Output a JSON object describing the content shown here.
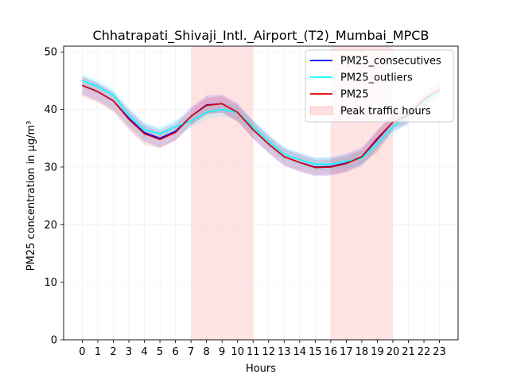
{
  "chart_data": {
    "type": "line",
    "title": "Chhatrapati_Shivaji_Intl._Airport_(T2)_Mumbai_MPCB",
    "xlabel": "Hours",
    "ylabel": "PM25 concentration in µg/m³",
    "x": [
      0,
      1,
      2,
      3,
      4,
      5,
      6,
      7,
      8,
      9,
      10,
      11,
      12,
      13,
      14,
      15,
      16,
      17,
      18,
      19,
      20,
      21,
      22,
      23
    ],
    "xlim": [
      -1.2,
      24.2
    ],
    "ylim": [
      0,
      51
    ],
    "yticks": [
      0,
      10,
      20,
      30,
      40,
      50
    ],
    "grid": true,
    "legend_position": "top-right",
    "series": [
      {
        "name": "PM25_consecutives",
        "color": "#0000ff",
        "values": [
          44.2,
          43.1,
          41.5,
          38.5,
          36.0,
          35.0,
          36.2,
          38.8,
          40.8,
          41.0,
          39.5,
          36.5,
          34.0,
          31.8,
          30.8,
          30.0,
          30.1,
          30.7,
          31.8,
          34.8,
          37.8,
          39.0,
          null,
          null
        ],
        "band_lower": [
          42.6,
          41.5,
          39.9,
          36.9,
          34.4,
          33.4,
          34.6,
          37.2,
          39.2,
          39.4,
          37.9,
          34.9,
          32.4,
          30.2,
          29.2,
          28.4,
          28.5,
          29.1,
          30.2,
          33.2,
          36.2,
          37.4,
          null,
          null
        ],
        "band_upper": [
          45.8,
          44.7,
          43.1,
          40.1,
          37.6,
          36.6,
          37.8,
          40.4,
          42.4,
          42.6,
          41.1,
          38.1,
          35.6,
          33.4,
          32.4,
          31.6,
          31.7,
          32.3,
          33.4,
          36.4,
          39.4,
          40.6,
          null,
          null
        ]
      },
      {
        "name": "PM25_outliers",
        "color": "#00ffff",
        "values": [
          45.0,
          44.0,
          42.5,
          39.0,
          36.5,
          35.8,
          37.0,
          38.0,
          39.5,
          40.0,
          39.5,
          37.0,
          34.5,
          32.2,
          31.3,
          30.5,
          30.5,
          31.0,
          31.5,
          34.0,
          37.0,
          39.0,
          41.5,
          43.0
        ],
        "band_lower": [
          43.8,
          42.8,
          41.3,
          37.8,
          35.3,
          34.6,
          35.8,
          36.8,
          38.3,
          38.8,
          38.3,
          35.8,
          33.3,
          31.0,
          30.1,
          29.3,
          29.3,
          29.8,
          30.3,
          32.8,
          35.8,
          37.8,
          40.3,
          41.8
        ],
        "band_upper": [
          46.2,
          45.2,
          43.7,
          40.2,
          37.7,
          37.0,
          38.2,
          39.2,
          40.7,
          41.2,
          40.7,
          38.2,
          35.7,
          33.4,
          32.5,
          31.7,
          31.7,
          32.2,
          32.7,
          35.2,
          38.2,
          40.2,
          42.7,
          44.2
        ]
      },
      {
        "name": "PM25",
        "color": "#dd0000",
        "values": [
          44.2,
          43.1,
          41.5,
          38.3,
          35.8,
          34.8,
          36.0,
          38.8,
          40.7,
          41.0,
          39.5,
          36.5,
          34.0,
          31.8,
          30.8,
          29.9,
          30.0,
          30.6,
          31.8,
          35.0,
          37.8,
          39.0,
          41.8,
          43.5
        ],
        "band_lower": [
          42.3,
          41.2,
          39.6,
          36.4,
          33.9,
          33.3,
          34.6,
          37.3,
          39.2,
          39.5,
          38.0,
          35.0,
          32.5,
          30.3,
          29.3,
          28.6,
          28.7,
          29.3,
          30.6,
          32.5,
          36.6,
          37.8,
          40.6,
          42.3
        ],
        "band_upper": [
          45.6,
          44.5,
          42.9,
          39.7,
          37.2,
          36.1,
          37.3,
          40.1,
          42.0,
          42.3,
          40.8,
          37.8,
          35.3,
          33.1,
          32.1,
          31.2,
          31.3,
          31.9,
          33.0,
          36.3,
          39.0,
          40.2,
          43.0,
          44.7
        ]
      }
    ],
    "shaded_regions": {
      "name": "Peak traffic hours",
      "color": "#ffcccc",
      "ranges": [
        [
          7,
          11
        ],
        [
          16,
          20
        ]
      ]
    }
  }
}
